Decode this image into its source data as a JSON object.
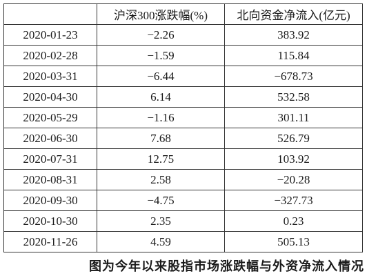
{
  "table": {
    "header": [
      "",
      "沪深300涨跌幅(%)",
      "北向资金净流入(亿元)"
    ],
    "rows": [
      [
        "2020-01-23",
        "−2.26",
        "383.92"
      ],
      [
        "2020-02-28",
        "−1.59",
        "115.84"
      ],
      [
        "2020-03-31",
        "−6.44",
        "−678.73"
      ],
      [
        "2020-04-30",
        "6.14",
        "532.58"
      ],
      [
        "2020-05-29",
        "−1.16",
        "301.11"
      ],
      [
        "2020-06-30",
        "7.68",
        "526.79"
      ],
      [
        "2020-07-31",
        "12.75",
        "103.92"
      ],
      [
        "2020-08-31",
        "2.58",
        "−20.28"
      ],
      [
        "2020-09-30",
        "−4.75",
        "−327.73"
      ],
      [
        "2020-10-30",
        "2.35",
        "0.23"
      ],
      [
        "2020-11-26",
        "4.59",
        "505.13"
      ]
    ]
  },
  "caption": "图为今年以来股指市场涨跌幅与外资净流入情况"
}
